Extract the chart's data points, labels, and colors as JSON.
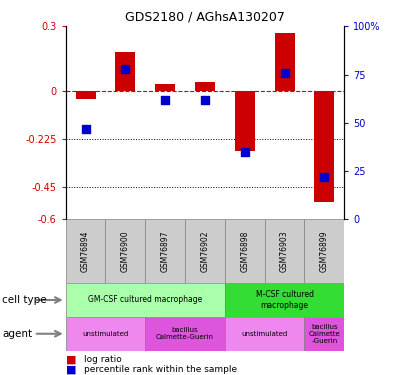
{
  "title": "GDS2180 / AGhsA130207",
  "samples": [
    "GSM76894",
    "GSM76900",
    "GSM76897",
    "GSM76902",
    "GSM76898",
    "GSM76903",
    "GSM76899"
  ],
  "log_ratio": [
    -0.04,
    0.18,
    0.03,
    0.04,
    -0.28,
    0.27,
    -0.52
  ],
  "percentile_rank": [
    47,
    78,
    62,
    62,
    35,
    76,
    22
  ],
  "ylim_left": [
    -0.6,
    0.3
  ],
  "ylim_right": [
    0,
    100
  ],
  "yticks_left": [
    -0.6,
    -0.45,
    -0.225,
    0,
    0.3
  ],
  "yticks_right": [
    0,
    25,
    50,
    75,
    100
  ],
  "ytick_labels_left": [
    "-0.6",
    "-0.45",
    "-0.225",
    "0",
    "0.3"
  ],
  "ytick_labels_right": [
    "0",
    "25",
    "50",
    "75",
    "100%"
  ],
  "hline_dotted": [
    -0.225,
    -0.45
  ],
  "bar_color": "#cc0000",
  "dot_color": "#0000cc",
  "cell_type_groups": [
    {
      "label": "GM-CSF cultured macrophage",
      "start": 0,
      "end": 3,
      "color": "#aaffaa"
    },
    {
      "label": "M-CSF cultured\nmacrophage",
      "start": 4,
      "end": 6,
      "color": "#33dd33"
    }
  ],
  "agent_groups": [
    {
      "label": "unstimulated",
      "start": 0,
      "end": 1,
      "color": "#ee88ee"
    },
    {
      "label": "bacillus\nCalmette-Guerin",
      "start": 2,
      "end": 3,
      "color": "#dd55dd"
    },
    {
      "label": "unstimulated",
      "start": 4,
      "end": 5,
      "color": "#ee88ee"
    },
    {
      "label": "bacillus\nCalmette\n-Guerin",
      "start": 6,
      "end": 6,
      "color": "#dd55dd"
    }
  ],
  "left_axis_color": "#cc0000",
  "right_axis_color": "#0000cc",
  "sample_bg": "#cccccc",
  "legend_items": [
    {
      "color": "#cc0000",
      "label": "log ratio"
    },
    {
      "color": "#0000cc",
      "label": "percentile rank within the sample"
    }
  ]
}
